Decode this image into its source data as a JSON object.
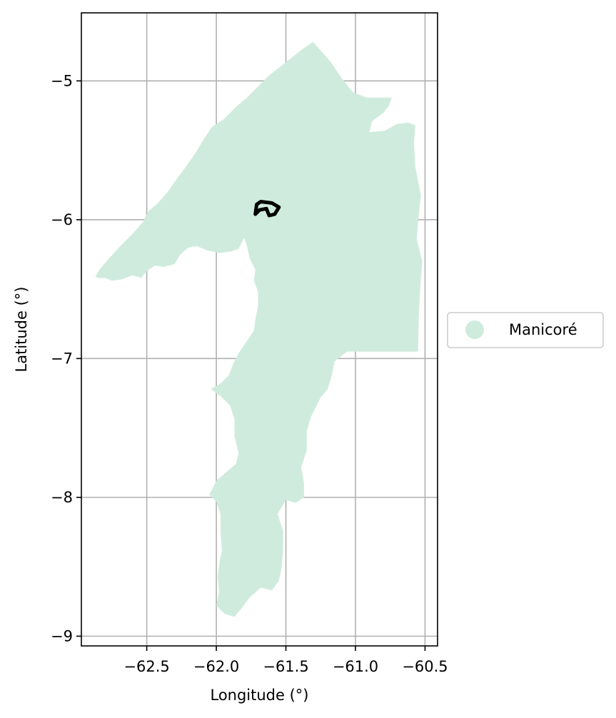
{
  "chart_data": {
    "type": "map",
    "xlabel": "Longitude (°)",
    "ylabel": "Latitude (°)",
    "xlim": [
      -62.97,
      -60.41
    ],
    "ylim": [
      -9.07,
      -4.51
    ],
    "x_ticks": [
      -62.5,
      -62.0,
      -61.5,
      -61.0,
      -60.5
    ],
    "x_tick_labels": [
      "−62.5",
      "−62.0",
      "−61.5",
      "−61.0",
      "−60.5"
    ],
    "y_ticks": [
      -5,
      -6,
      -7,
      -8,
      -9
    ],
    "y_tick_labels": [
      "−5",
      "−6",
      "−7",
      "−8",
      "−9"
    ],
    "grid": true,
    "legend": {
      "placement": "center-right-outside",
      "entries": [
        {
          "label": "Manicoré",
          "color": "#cfebde"
        }
      ]
    },
    "regions": [
      {
        "name": "Manicoré",
        "color": "#cfebde",
        "outline": [
          [
            -61.305,
            -4.72
          ],
          [
            -61.38,
            -4.77
          ],
          [
            -61.48,
            -4.85
          ],
          [
            -61.55,
            -4.905
          ],
          [
            -61.62,
            -4.96
          ],
          [
            -61.7,
            -5.04
          ],
          [
            -61.78,
            -5.12
          ],
          [
            -61.85,
            -5.18
          ],
          [
            -61.95,
            -5.28
          ],
          [
            -62.03,
            -5.33
          ],
          [
            -62.09,
            -5.42
          ],
          [
            -62.15,
            -5.52
          ],
          [
            -62.22,
            -5.62
          ],
          [
            -62.28,
            -5.7
          ],
          [
            -62.35,
            -5.8
          ],
          [
            -62.42,
            -5.88
          ],
          [
            -62.49,
            -5.94
          ],
          [
            -62.53,
            -6.02
          ],
          [
            -62.62,
            -6.12
          ],
          [
            -62.7,
            -6.2
          ],
          [
            -62.79,
            -6.3
          ],
          [
            -62.84,
            -6.36
          ],
          [
            -62.87,
            -6.41
          ],
          [
            -62.85,
            -6.42
          ],
          [
            -62.8,
            -6.42
          ],
          [
            -62.75,
            -6.44
          ],
          [
            -62.68,
            -6.43
          ],
          [
            -62.6,
            -6.4
          ],
          [
            -62.54,
            -6.42
          ],
          [
            -62.5,
            -6.37
          ],
          [
            -62.44,
            -6.33
          ],
          [
            -62.38,
            -6.34
          ],
          [
            -62.3,
            -6.32
          ],
          [
            -62.26,
            -6.25
          ],
          [
            -62.2,
            -6.2
          ],
          [
            -62.14,
            -6.19
          ],
          [
            -62.07,
            -6.22
          ],
          [
            -61.98,
            -6.24
          ],
          [
            -61.9,
            -6.23
          ],
          [
            -61.84,
            -6.21
          ],
          [
            -61.8,
            -6.13
          ],
          [
            -61.78,
            -6.19
          ],
          [
            -61.76,
            -6.28
          ],
          [
            -61.72,
            -6.36
          ],
          [
            -61.73,
            -6.44
          ],
          [
            -61.7,
            -6.52
          ],
          [
            -61.7,
            -6.62
          ],
          [
            -61.72,
            -6.72
          ],
          [
            -61.73,
            -6.8
          ],
          [
            -61.77,
            -6.86
          ],
          [
            -61.84,
            -6.96
          ],
          [
            -61.88,
            -7.04
          ],
          [
            -61.91,
            -7.12
          ],
          [
            -61.97,
            -7.18
          ],
          [
            -62.04,
            -7.22
          ],
          [
            -61.97,
            -7.27
          ],
          [
            -61.9,
            -7.34
          ],
          [
            -61.87,
            -7.44
          ],
          [
            -61.87,
            -7.56
          ],
          [
            -61.84,
            -7.68
          ],
          [
            -61.86,
            -7.76
          ],
          [
            -61.93,
            -7.82
          ],
          [
            -62.0,
            -7.88
          ],
          [
            -62.05,
            -7.98
          ],
          [
            -62.0,
            -8.03
          ],
          [
            -61.97,
            -8.12
          ],
          [
            -61.97,
            -8.24
          ],
          [
            -61.96,
            -8.38
          ],
          [
            -61.98,
            -8.48
          ],
          [
            -61.99,
            -8.58
          ],
          [
            -61.98,
            -8.68
          ],
          [
            -62.0,
            -8.78
          ],
          [
            -61.94,
            -8.84
          ],
          [
            -61.87,
            -8.86
          ],
          [
            -61.82,
            -8.8
          ],
          [
            -61.76,
            -8.72
          ],
          [
            -61.68,
            -8.65
          ],
          [
            -61.6,
            -8.67
          ],
          [
            -61.55,
            -8.6
          ],
          [
            -61.53,
            -8.5
          ],
          [
            -61.52,
            -8.38
          ],
          [
            -61.52,
            -8.24
          ],
          [
            -61.56,
            -8.12
          ],
          [
            -61.5,
            -8.02
          ],
          [
            -61.43,
            -8.04
          ],
          [
            -61.37,
            -8.0
          ],
          [
            -61.37,
            -7.9
          ],
          [
            -61.39,
            -7.78
          ],
          [
            -61.35,
            -7.66
          ],
          [
            -61.35,
            -7.52
          ],
          [
            -61.32,
            -7.42
          ],
          [
            -61.28,
            -7.34
          ],
          [
            -61.25,
            -7.28
          ],
          [
            -61.2,
            -7.22
          ],
          [
            -61.17,
            -7.12
          ],
          [
            -61.15,
            -7.02
          ],
          [
            -61.06,
            -6.95
          ],
          [
            -60.55,
            -6.95
          ],
          [
            -60.545,
            -6.7
          ],
          [
            -60.535,
            -6.5
          ],
          [
            -60.52,
            -6.3
          ],
          [
            -60.56,
            -6.14
          ],
          [
            -60.55,
            -6.02
          ],
          [
            -60.53,
            -5.82
          ],
          [
            -60.57,
            -5.62
          ],
          [
            -60.58,
            -5.45
          ],
          [
            -60.57,
            -5.32
          ],
          [
            -60.62,
            -5.3
          ],
          [
            -60.7,
            -5.31
          ],
          [
            -60.79,
            -5.36
          ],
          [
            -60.9,
            -5.37
          ],
          [
            -60.88,
            -5.29
          ],
          [
            -60.8,
            -5.23
          ],
          [
            -60.76,
            -5.18
          ],
          [
            -60.74,
            -5.12
          ],
          [
            -60.92,
            -5.12
          ],
          [
            -61.02,
            -5.08
          ],
          [
            -61.1,
            -4.98
          ],
          [
            -61.18,
            -4.86
          ],
          [
            -61.305,
            -4.72
          ]
        ]
      }
    ],
    "features": [
      {
        "color": "#000000",
        "line": [
          [
            -61.68,
            -5.87
          ],
          [
            -61.6,
            -5.88
          ],
          [
            -61.55,
            -5.91
          ],
          [
            -61.58,
            -5.96
          ],
          [
            -61.62,
            -5.97
          ],
          [
            -61.64,
            -5.92
          ],
          [
            -61.69,
            -5.93
          ],
          [
            -61.72,
            -5.96
          ],
          [
            -61.71,
            -5.89
          ],
          [
            -61.68,
            -5.87
          ]
        ]
      }
    ]
  }
}
